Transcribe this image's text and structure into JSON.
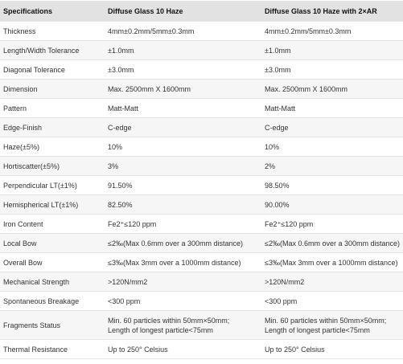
{
  "table": {
    "header": [
      "Specifications",
      "Diffuse Glass 10 Haze",
      "Diffuse Glass 10 Haze with 2×AR"
    ],
    "rows": [
      [
        "Thickness",
        "4mm±0.2mm/5mm±0.3mm",
        "4mm±0.2mm/5mm±0.3mm"
      ],
      [
        "Length/Width Tolerance",
        "±1.0mm",
        "±1.0mm"
      ],
      [
        "Diagonal Tolerance",
        "±3.0mm",
        "±3.0mm"
      ],
      [
        "Dimension",
        "Max. 2500mm X 1600mm",
        "Max. 2500mm X 1600mm"
      ],
      [
        "Pattern",
        "Matt-Matt",
        "Matt-Matt"
      ],
      [
        "Edge-Finish",
        "C-edge",
        "C-edge"
      ],
      [
        "Haze(±5%)",
        "10%",
        "10%"
      ],
      [
        "Hortiscatter(±5%)",
        "3%",
        "2%"
      ],
      [
        "Perpendicular LT(±1%)",
        "91.50%",
        "98.50%"
      ],
      [
        "Hemispherical LT(±1%)",
        "82.50%",
        "90.00%"
      ],
      [
        "Iron Content",
        "Fe2⁺≤120 ppm",
        "Fe2⁺≤120 ppm"
      ],
      [
        "Local Bow",
        "≤2‰(Max 0.6mm over a 300mm distance)",
        "≤2‰(Max 0.6mm over a 300mm distance)"
      ],
      [
        "Overall Bow",
        "≤3‰(Max 3mm over a 1000mm distance)",
        "≤3‰(Max 3mm over a 1000mm distance)"
      ],
      [
        "Mechanical Strength",
        ">120N/mm2",
        ">120N/mm2"
      ],
      [
        "Spontaneous Breakage",
        "<300 ppm",
        "<300 ppm"
      ],
      [
        "Fragments Status",
        "Min. 60 particles within 50mm×50mm;\nLength of longest particle<75mm",
        "Min. 60 particles within 50mm×50mm;\nLength of longest particle<75mm"
      ],
      [
        "Thermal Resistance",
        "Up to 250° Celsius",
        "Up to 250° Celsius"
      ]
    ]
  }
}
